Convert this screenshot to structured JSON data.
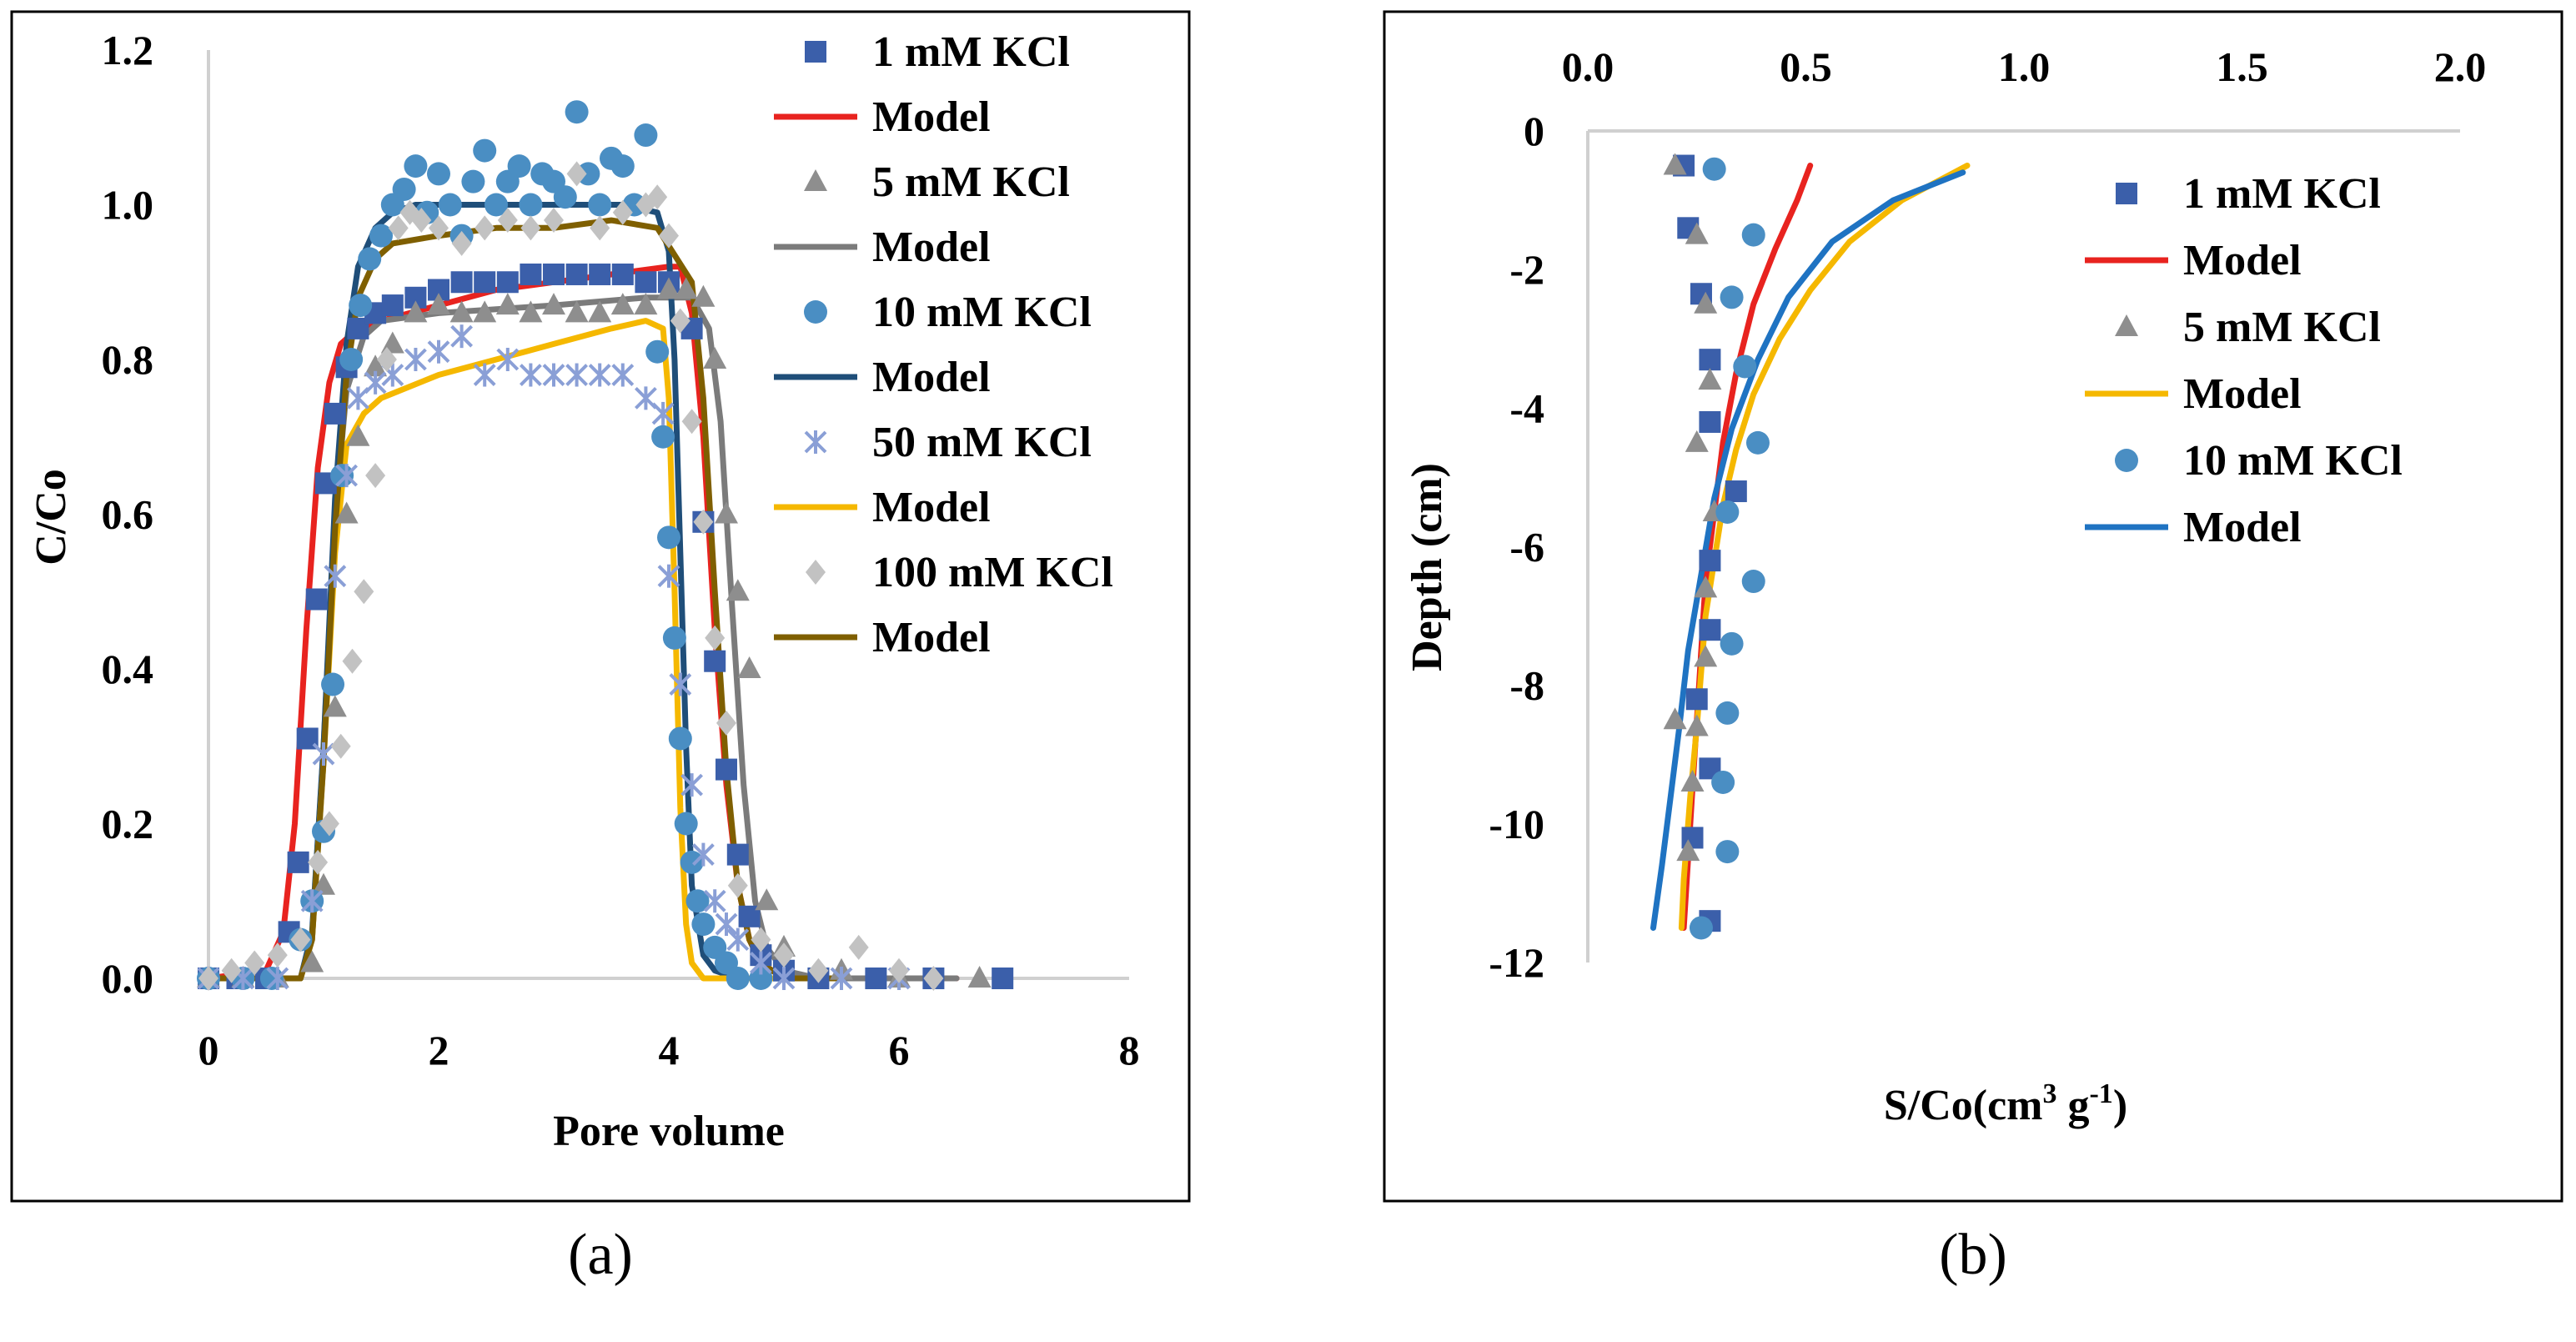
{
  "panels": {
    "a": "(a)",
    "b": "(b)"
  },
  "chart_data": [
    {
      "type": "scatter",
      "panel": "a",
      "title": "",
      "xlabel": "Pore volume",
      "ylabel": "C/Co",
      "xlim": [
        0,
        8
      ],
      "ylim": [
        0,
        1.2
      ],
      "xticks": [
        "0",
        "2",
        "4",
        "6",
        "8"
      ],
      "yticks": [
        "0.0",
        "0.2",
        "0.4",
        "0.6",
        "0.8",
        "1.0",
        "1.2"
      ],
      "legend_position": "top-right",
      "series": [
        {
          "name": "1 mM KCl",
          "kind": "points",
          "marker": "square",
          "color": "#3b5faa",
          "x": [
            0.0,
            0.25,
            0.5,
            0.7,
            0.78,
            0.86,
            0.94,
            1.02,
            1.1,
            1.2,
            1.3,
            1.45,
            1.6,
            1.8,
            2.0,
            2.2,
            2.4,
            2.6,
            2.8,
            3.0,
            3.2,
            3.4,
            3.6,
            3.8,
            4.0,
            4.2,
            4.3,
            4.4,
            4.5,
            4.6,
            4.7,
            4.8,
            5.0,
            5.3,
            5.8,
            6.3,
            6.9
          ],
          "y": [
            0.0,
            0.0,
            0.0,
            0.06,
            0.15,
            0.31,
            0.49,
            0.64,
            0.73,
            0.79,
            0.84,
            0.86,
            0.87,
            0.88,
            0.89,
            0.9,
            0.9,
            0.9,
            0.91,
            0.91,
            0.91,
            0.91,
            0.91,
            0.9,
            0.9,
            0.84,
            0.59,
            0.41,
            0.27,
            0.16,
            0.08,
            0.03,
            0.01,
            0.0,
            0.0,
            0.0,
            0.0
          ]
        },
        {
          "name": "Model",
          "kind": "line",
          "color": "#e8231f",
          "x": [
            0.0,
            0.5,
            0.65,
            0.75,
            0.85,
            0.95,
            1.05,
            1.15,
            1.3,
            1.5,
            2.0,
            2.5,
            3.0,
            3.5,
            4.0,
            4.1,
            4.2,
            4.3,
            4.4,
            4.5,
            4.6,
            4.7,
            4.8,
            5.0,
            5.5,
            6.5
          ],
          "y": [
            0.0,
            0.01,
            0.06,
            0.2,
            0.45,
            0.66,
            0.77,
            0.82,
            0.84,
            0.85,
            0.87,
            0.89,
            0.9,
            0.91,
            0.92,
            0.92,
            0.86,
            0.7,
            0.45,
            0.25,
            0.12,
            0.05,
            0.02,
            0.0,
            0.0,
            0.0
          ]
        },
        {
          "name": "5 mM KCl",
          "kind": "points",
          "marker": "triangle",
          "color": "#8e8e8e",
          "x": [
            0.0,
            0.3,
            0.6,
            0.9,
            1.0,
            1.1,
            1.2,
            1.3,
            1.45,
            1.6,
            1.8,
            2.0,
            2.2,
            2.4,
            2.6,
            2.8,
            3.0,
            3.2,
            3.4,
            3.6,
            3.8,
            4.0,
            4.15,
            4.3,
            4.4,
            4.5,
            4.6,
            4.7,
            4.85,
            5.0,
            5.5,
            6.0,
            6.7
          ],
          "y": [
            0.0,
            0.0,
            0.0,
            0.02,
            0.12,
            0.35,
            0.6,
            0.7,
            0.79,
            0.82,
            0.86,
            0.87,
            0.86,
            0.86,
            0.87,
            0.86,
            0.87,
            0.86,
            0.86,
            0.87,
            0.87,
            0.89,
            0.89,
            0.88,
            0.8,
            0.6,
            0.5,
            0.4,
            0.1,
            0.04,
            0.01,
            0.0,
            0.0
          ]
        },
        {
          "name": "Model",
          "kind": "line",
          "color": "#7b7b7b",
          "x": [
            0.0,
            0.8,
            0.9,
            1.0,
            1.1,
            1.2,
            1.35,
            1.5,
            2.0,
            3.0,
            3.8,
            4.2,
            4.35,
            4.45,
            4.55,
            4.65,
            4.75,
            4.85,
            5.0,
            5.3,
            6.5
          ],
          "y": [
            0.0,
            0.0,
            0.05,
            0.3,
            0.6,
            0.76,
            0.83,
            0.85,
            0.86,
            0.87,
            0.88,
            0.88,
            0.84,
            0.72,
            0.48,
            0.25,
            0.1,
            0.04,
            0.01,
            0.0,
            0.0
          ]
        },
        {
          "name": "10 mM KCl",
          "kind": "points",
          "marker": "circle",
          "color": "#4a8ec3",
          "x": [
            0.0,
            0.3,
            0.55,
            0.8,
            0.9,
            1.0,
            1.08,
            1.16,
            1.24,
            1.32,
            1.4,
            1.5,
            1.6,
            1.7,
            1.8,
            1.9,
            2.0,
            2.1,
            2.2,
            2.3,
            2.4,
            2.5,
            2.6,
            2.7,
            2.8,
            2.9,
            3.0,
            3.1,
            3.2,
            3.3,
            3.4,
            3.5,
            3.6,
            3.7,
            3.8,
            3.9,
            3.95,
            4.0,
            4.05,
            4.1,
            4.15,
            4.2,
            4.25,
            4.3,
            4.4,
            4.5,
            4.6,
            4.8
          ],
          "y": [
            0.0,
            0.0,
            0.0,
            0.05,
            0.1,
            0.19,
            0.38,
            0.65,
            0.8,
            0.87,
            0.93,
            0.96,
            1.0,
            1.02,
            1.05,
            0.99,
            1.04,
            1.0,
            0.96,
            1.03,
            1.07,
            1.0,
            1.03,
            1.05,
            1.0,
            1.04,
            1.03,
            1.01,
            1.12,
            1.04,
            1.0,
            1.06,
            1.05,
            1.0,
            1.09,
            0.81,
            0.7,
            0.57,
            0.44,
            0.31,
            0.2,
            0.15,
            0.1,
            0.07,
            0.04,
            0.02,
            0.0,
            0.0
          ]
        },
        {
          "name": "Model",
          "kind": "line",
          "color": "#1f4e79",
          "x": [
            0.0,
            0.8,
            0.9,
            1.0,
            1.1,
            1.2,
            1.3,
            1.45,
            1.6,
            1.8,
            3.6,
            3.9,
            4.0,
            4.05,
            4.1,
            4.15,
            4.2,
            4.3,
            4.4,
            4.6,
            5.0
          ],
          "y": [
            0.0,
            0.0,
            0.06,
            0.3,
            0.62,
            0.82,
            0.92,
            0.97,
            0.99,
            1.0,
            1.0,
            0.99,
            0.94,
            0.8,
            0.55,
            0.3,
            0.12,
            0.03,
            0.01,
            0.0,
            0.0
          ]
        },
        {
          "name": "50 mM KCl",
          "kind": "points",
          "marker": "asterisk",
          "color": "#8a9fd6",
          "x": [
            0.0,
            0.3,
            0.6,
            0.9,
            1.0,
            1.1,
            1.2,
            1.3,
            1.45,
            1.6,
            1.8,
            2.0,
            2.2,
            2.4,
            2.6,
            2.8,
            3.0,
            3.2,
            3.4,
            3.6,
            3.8,
            3.95,
            4.0,
            4.1,
            4.2,
            4.3,
            4.4,
            4.5,
            4.6,
            4.8,
            5.0,
            5.5,
            6.0
          ],
          "y": [
            0.0,
            0.0,
            0.0,
            0.1,
            0.29,
            0.52,
            0.65,
            0.75,
            0.77,
            0.78,
            0.8,
            0.81,
            0.83,
            0.78,
            0.8,
            0.78,
            0.78,
            0.78,
            0.78,
            0.78,
            0.75,
            0.73,
            0.52,
            0.38,
            0.25,
            0.16,
            0.1,
            0.07,
            0.05,
            0.02,
            0.0,
            0.0,
            0.0
          ]
        },
        {
          "name": "Model",
          "kind": "line",
          "color": "#f5b800",
          "x": [
            0.0,
            0.8,
            0.9,
            1.0,
            1.1,
            1.2,
            1.35,
            1.5,
            2.0,
            2.5,
            3.0,
            3.5,
            3.8,
            3.95,
            4.0,
            4.05,
            4.1,
            4.15,
            4.2,
            4.3,
            4.6,
            5.0
          ],
          "y": [
            0.0,
            0.0,
            0.05,
            0.28,
            0.55,
            0.69,
            0.73,
            0.75,
            0.78,
            0.8,
            0.82,
            0.84,
            0.85,
            0.84,
            0.75,
            0.5,
            0.22,
            0.07,
            0.02,
            0.0,
            0.0,
            0.0
          ]
        },
        {
          "name": "100 mM KCl",
          "kind": "points",
          "marker": "diamond",
          "color": "#c2c2c2",
          "x": [
            0.0,
            0.2,
            0.4,
            0.6,
            0.8,
            0.95,
            1.05,
            1.15,
            1.25,
            1.35,
            1.45,
            1.55,
            1.65,
            1.75,
            1.85,
            2.0,
            2.2,
            2.4,
            2.6,
            2.8,
            3.0,
            3.2,
            3.4,
            3.6,
            3.8,
            3.9,
            4.0,
            4.1,
            4.2,
            4.3,
            4.4,
            4.5,
            4.6,
            4.8,
            5.0,
            5.3,
            5.65,
            6.0,
            6.3
          ],
          "y": [
            0.0,
            0.01,
            0.02,
            0.03,
            0.05,
            0.15,
            0.2,
            0.3,
            0.41,
            0.5,
            0.65,
            0.8,
            0.97,
            0.99,
            0.98,
            0.97,
            0.95,
            0.97,
            0.98,
            0.97,
            0.98,
            1.04,
            0.97,
            0.99,
            1.0,
            1.01,
            0.96,
            0.85,
            0.72,
            0.59,
            0.44,
            0.33,
            0.12,
            0.05,
            0.03,
            0.01,
            0.04,
            0.01,
            0.0
          ]
        },
        {
          "name": "Model",
          "kind": "line",
          "color": "#7f5f00",
          "x": [
            0.0,
            0.8,
            0.9,
            1.0,
            1.1,
            1.2,
            1.3,
            1.45,
            1.6,
            2.0,
            2.5,
            3.0,
            3.5,
            3.9,
            4.2,
            4.3,
            4.4,
            4.5,
            4.6,
            4.7,
            4.8,
            5.0,
            5.5
          ],
          "y": [
            0.0,
            0.0,
            0.05,
            0.28,
            0.58,
            0.78,
            0.88,
            0.93,
            0.95,
            0.96,
            0.97,
            0.97,
            0.98,
            0.97,
            0.9,
            0.75,
            0.5,
            0.27,
            0.12,
            0.05,
            0.02,
            0.0,
            0.0
          ]
        }
      ]
    },
    {
      "type": "scatter",
      "panel": "b",
      "title": "",
      "xlabel": "S/Co(cm³ g⁻¹)",
      "xlabel_main": "S/Co(cm",
      "xlabel_sup1": "3",
      "xlabel_mid": " g",
      "xlabel_sup2": "-1",
      "xlabel_end": ")",
      "ylabel": "Depth (cm)",
      "xlim": [
        0,
        2.0
      ],
      "ylim": [
        -12,
        0
      ],
      "x_axis_position": "top",
      "xticks": [
        "0.0",
        "0.5",
        "1.0",
        "1.5",
        "2.0"
      ],
      "yticks": [
        "0",
        "-2",
        "-4",
        "-6",
        "-8",
        "-10",
        "-12"
      ],
      "legend_position": "right",
      "series": [
        {
          "name": "1 mM KCl",
          "kind": "points",
          "marker": "square",
          "color": "#3b5faa",
          "x": [
            0.22,
            0.23,
            0.26,
            0.28,
            0.28,
            0.34,
            0.28,
            0.28,
            0.25,
            0.28,
            0.24,
            0.28
          ],
          "y": [
            -0.5,
            -1.4,
            -2.35,
            -3.3,
            -4.2,
            -5.2,
            -6.2,
            -7.2,
            -8.2,
            -9.2,
            -10.2,
            -11.4
          ]
        },
        {
          "name": "Model",
          "kind": "line",
          "color": "#e8231f",
          "x": [
            0.51,
            0.48,
            0.43,
            0.38,
            0.34,
            0.31,
            0.29,
            0.27,
            0.26,
            0.25,
            0.24,
            0.23,
            0.225,
            0.22
          ],
          "y": [
            -0.5,
            -1.0,
            -1.7,
            -2.5,
            -3.5,
            -4.5,
            -5.5,
            -6.5,
            -7.5,
            -8.5,
            -9.5,
            -10.5,
            -11.0,
            -11.5
          ]
        },
        {
          "name": "5 mM KCl",
          "kind": "points",
          "marker": "triangle",
          "color": "#8e8e8e",
          "x": [
            0.2,
            0.25,
            0.27,
            0.28,
            0.25,
            0.29,
            0.27,
            0.27,
            0.25,
            0.2,
            0.24,
            0.23
          ],
          "y": [
            -0.5,
            -1.5,
            -2.5,
            -3.6,
            -4.5,
            -5.5,
            -6.6,
            -7.6,
            -8.6,
            -8.5,
            -9.4,
            -10.4
          ]
        },
        {
          "name": "Model",
          "kind": "line",
          "color": "#f5b800",
          "x": [
            0.87,
            0.72,
            0.6,
            0.51,
            0.44,
            0.38,
            0.34,
            0.31,
            0.29,
            0.27,
            0.26,
            0.25,
            0.235,
            0.22,
            0.215
          ],
          "y": [
            -0.5,
            -1.0,
            -1.6,
            -2.3,
            -3.0,
            -3.8,
            -4.6,
            -5.4,
            -6.2,
            -7.0,
            -7.8,
            -8.6,
            -9.6,
            -10.8,
            -11.5
          ]
        },
        {
          "name": "10 mM KCl",
          "kind": "points",
          "marker": "circle",
          "color": "#4a8ec3",
          "x": [
            0.29,
            0.38,
            0.33,
            0.36,
            0.39,
            0.32,
            0.38,
            0.33,
            0.32,
            0.31,
            0.32,
            0.26
          ],
          "y": [
            -0.55,
            -1.5,
            -2.4,
            -3.4,
            -4.5,
            -5.5,
            -6.5,
            -7.4,
            -8.4,
            -9.4,
            -10.4,
            -11.5
          ]
        },
        {
          "name": "Model",
          "kind": "line",
          "color": "#1f73c2",
          "x": [
            0.86,
            0.7,
            0.56,
            0.46,
            0.39,
            0.33,
            0.29,
            0.26,
            0.23,
            0.21,
            0.19,
            0.17,
            0.15
          ],
          "y": [
            -0.6,
            -1.0,
            -1.6,
            -2.4,
            -3.3,
            -4.3,
            -5.3,
            -6.4,
            -7.5,
            -8.6,
            -9.6,
            -10.6,
            -11.5
          ]
        }
      ]
    }
  ]
}
